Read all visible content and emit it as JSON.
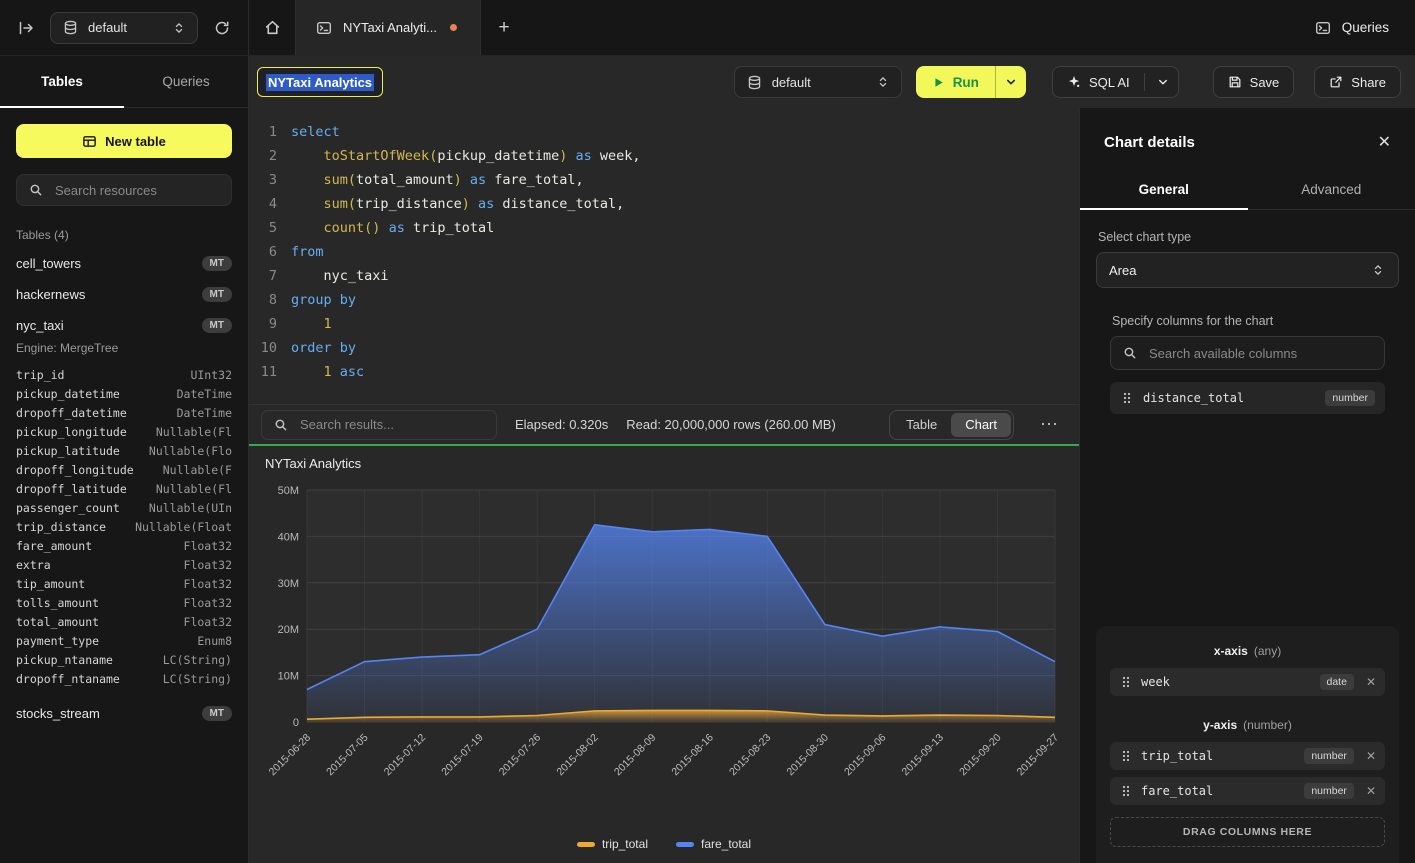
{
  "topbar": {
    "database": "default",
    "tab_title": "NYTaxi Analyti...",
    "queries_label": "Queries"
  },
  "sidebar": {
    "tabs": [
      {
        "label": "Tables"
      },
      {
        "label": "Queries"
      }
    ],
    "new_table_label": "New table",
    "search_placeholder": "Search resources",
    "section_label": "Tables (4)",
    "tables": [
      {
        "name": "cell_towers",
        "badge": "MT"
      },
      {
        "name": "hackernews",
        "badge": "MT"
      },
      {
        "name": "nyc_taxi",
        "badge": "MT",
        "expanded": true,
        "engine": "Engine: MergeTree",
        "columns": [
          {
            "name": "trip_id",
            "type": "UInt32"
          },
          {
            "name": "pickup_datetime",
            "type": "DateTime"
          },
          {
            "name": "dropoff_datetime",
            "type": "DateTime"
          },
          {
            "name": "pickup_longitude",
            "type": "Nullable(Fl"
          },
          {
            "name": "pickup_latitude",
            "type": "Nullable(Flo"
          },
          {
            "name": "dropoff_longitude",
            "type": "Nullable(F"
          },
          {
            "name": "dropoff_latitude",
            "type": "Nullable(Fl"
          },
          {
            "name": "passenger_count",
            "type": "Nullable(UIn"
          },
          {
            "name": "trip_distance",
            "type": "Nullable(Float"
          },
          {
            "name": "fare_amount",
            "type": "Float32"
          },
          {
            "name": "extra",
            "type": "Float32"
          },
          {
            "name": "tip_amount",
            "type": "Float32"
          },
          {
            "name": "tolls_amount",
            "type": "Float32"
          },
          {
            "name": "total_amount",
            "type": "Float32"
          },
          {
            "name": "payment_type",
            "type": "Enum8"
          },
          {
            "name": "pickup_ntaname",
            "type": "LC(String)"
          },
          {
            "name": "dropoff_ntaname",
            "type": "LC(String)"
          }
        ]
      },
      {
        "name": "stocks_stream",
        "badge": "MT"
      }
    ]
  },
  "header": {
    "title_value": "NYTaxi Analytics",
    "database": "default",
    "run_label": "Run",
    "sql_ai_label": "SQL AI",
    "save_label": "Save",
    "share_label": "Share"
  },
  "editor": {
    "lines": [
      [
        [
          "select",
          "k"
        ]
      ],
      [
        [
          "    ",
          "t"
        ],
        [
          "toStartOfWeek",
          "f"
        ],
        [
          "(",
          "p"
        ],
        [
          "pickup_datetime",
          "t"
        ],
        [
          ")",
          "p"
        ],
        [
          " ",
          "t"
        ],
        [
          "as",
          "k"
        ],
        [
          " week,",
          "t"
        ]
      ],
      [
        [
          "    ",
          "t"
        ],
        [
          "sum",
          "f"
        ],
        [
          "(",
          "p"
        ],
        [
          "total_amount",
          "t"
        ],
        [
          ")",
          "p"
        ],
        [
          " ",
          "t"
        ],
        [
          "as",
          "k"
        ],
        [
          " fare_total,",
          "t"
        ]
      ],
      [
        [
          "    ",
          "t"
        ],
        [
          "sum",
          "f"
        ],
        [
          "(",
          "p"
        ],
        [
          "trip_distance",
          "t"
        ],
        [
          ")",
          "p"
        ],
        [
          " ",
          "t"
        ],
        [
          "as",
          "k"
        ],
        [
          " distance_total,",
          "t"
        ]
      ],
      [
        [
          "    ",
          "t"
        ],
        [
          "count",
          "f"
        ],
        [
          "()",
          "p"
        ],
        [
          " ",
          "t"
        ],
        [
          "as",
          "k"
        ],
        [
          " trip_total",
          "t"
        ]
      ],
      [
        [
          "from",
          "k"
        ]
      ],
      [
        [
          "    nyc_taxi",
          "t"
        ]
      ],
      [
        [
          "group by",
          "k"
        ]
      ],
      [
        [
          "    ",
          "t"
        ],
        [
          "1",
          "n"
        ]
      ],
      [
        [
          "order by",
          "k"
        ]
      ],
      [
        [
          "    ",
          "t"
        ],
        [
          "1",
          "n"
        ],
        [
          " ",
          "t"
        ],
        [
          "asc",
          "k"
        ]
      ]
    ]
  },
  "toolbar": {
    "search_placeholder": "Search results...",
    "elapsed": "Elapsed: 0.320s",
    "read": "Read: 20,000,000 rows (260.00 MB)",
    "views": [
      {
        "label": "Table"
      },
      {
        "label": "Chart",
        "active": true
      }
    ],
    "more_label": "⋯"
  },
  "chart_data": {
    "type": "area",
    "title": "NYTaxi Analytics",
    "x": [
      "2015-06-28",
      "2015-07-05",
      "2015-07-12",
      "2015-07-19",
      "2015-07-26",
      "2015-08-02",
      "2015-08-09",
      "2015-08-16",
      "2015-08-23",
      "2015-08-30",
      "2015-09-06",
      "2015-09-13",
      "2015-09-20",
      "2015-09-27"
    ],
    "series": [
      {
        "name": "trip_total",
        "color": "#f0a832",
        "values": [
          0.6,
          1.0,
          1.1,
          1.1,
          1.4,
          2.4,
          2.5,
          2.5,
          2.4,
          1.5,
          1.3,
          1.5,
          1.4,
          1.0
        ]
      },
      {
        "name": "fare_total",
        "color": "#5585f2",
        "values": [
          7,
          13,
          14,
          14.5,
          20,
          42.5,
          41,
          41.5,
          40,
          21,
          18.5,
          20.5,
          19.5,
          13
        ]
      }
    ],
    "values_in": "millions",
    "ylim": [
      0,
      50
    ],
    "yticks": [
      "0",
      "10M",
      "20M",
      "30M",
      "40M",
      "50M"
    ],
    "grid": true,
    "legend_position": "bottom"
  },
  "panel": {
    "title": "Chart details",
    "tabs": [
      {
        "label": "General",
        "active": true
      },
      {
        "label": "Advanced"
      }
    ],
    "chart_type_label": "Select chart type",
    "chart_type_value": "Area",
    "columns_label": "Specify columns for the chart",
    "search_placeholder": "Search available columns",
    "available_columns": [
      {
        "name": "distance_total",
        "type": "number"
      }
    ],
    "x_axis": {
      "label": "x-axis",
      "hint": "(any)",
      "items": [
        {
          "name": "week",
          "type": "date"
        }
      ]
    },
    "y_axis": {
      "label": "y-axis",
      "hint": "(number)",
      "items": [
        {
          "name": "trip_total",
          "type": "number"
        },
        {
          "name": "fare_total",
          "type": "number"
        }
      ]
    },
    "drop_label": "DRAG COLUMNS HERE",
    "accent_yellow": "#f6fa5d",
    "run_green": "#15934d"
  }
}
